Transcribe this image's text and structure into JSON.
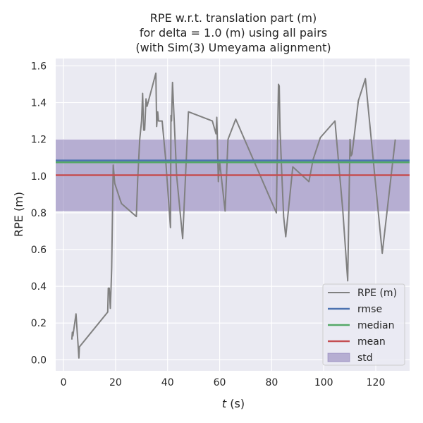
{
  "chart_data": {
    "type": "line",
    "title_lines": [
      "RPE w.r.t. translation part (m)",
      "for delta = 1.0 (m) using all pairs",
      "(with Sim(3) Umeyama alignment)"
    ],
    "xlabel_var": "t",
    "xlabel_unit": "(s)",
    "ylabel": "RPE (m)",
    "xlim": [
      -3,
      133
    ],
    "ylim": [
      -0.06,
      1.64
    ],
    "x_ticks": [
      0,
      20,
      40,
      60,
      80,
      100,
      120
    ],
    "y_ticks": [
      0.0,
      0.2,
      0.4,
      0.6,
      0.8,
      1.0,
      1.2,
      1.4,
      1.6
    ],
    "y_tick_labels": [
      "0.0",
      "0.2",
      "0.4",
      "0.6",
      "0.8",
      "1.0",
      "1.2",
      "1.4",
      "1.6"
    ],
    "grid": true,
    "legend_position": "lower-right",
    "series": [
      {
        "name": "RPE (m)",
        "color": "#808080",
        "x": [
          3.2,
          3.4,
          3.6,
          4.8,
          5.7,
          5.9,
          6.1,
          17.0,
          17.2,
          17.6,
          18.0,
          18.3,
          18.5,
          19.1,
          19.7,
          21.8,
          22.3,
          28.0,
          28.5,
          29.3,
          30.0,
          30.4,
          30.8,
          31.2,
          31.7,
          32.1,
          35.5,
          35.8,
          36.2,
          36.5,
          37.9,
          39.2,
          41.1,
          41.3,
          41.5,
          41.9,
          43.5,
          45.8,
          48.0,
          57.2,
          58.6,
          58.9,
          59.5,
          60.0,
          62.1,
          63.2,
          66.2,
          81.8,
          82.6,
          82.9,
          83.2,
          83.7,
          84.6,
          85.4,
          88.1,
          94.3,
          95.9,
          98.7,
          104.3,
          107.3,
          109.2,
          110.1,
          110.5,
          110.9,
          113.3,
          116.0,
          122.5,
          127.5
        ],
        "values": [
          0.11,
          0.15,
          0.13,
          0.25,
          0.06,
          0.01,
          0.07,
          0.26,
          0.39,
          0.39,
          0.28,
          0.4,
          0.5,
          1.06,
          0.96,
          0.87,
          0.85,
          0.78,
          0.98,
          1.2,
          1.3,
          1.45,
          1.25,
          1.25,
          1.42,
          1.38,
          1.56,
          1.27,
          1.35,
          1.3,
          1.3,
          1.1,
          0.72,
          1.33,
          1.3,
          1.51,
          1.0,
          0.66,
          1.35,
          1.3,
          1.23,
          1.32,
          0.97,
          1.08,
          0.81,
          1.2,
          1.31,
          0.8,
          1.5,
          1.49,
          1.25,
          1.08,
          0.78,
          0.67,
          1.05,
          0.97,
          1.09,
          1.21,
          1.3,
          0.82,
          0.43,
          1.2,
          1.11,
          1.12,
          1.41,
          1.53,
          0.58,
          1.2
        ]
      },
      {
        "name": "rmse",
        "color": "#4c72b0",
        "value": 1.085
      },
      {
        "name": "median",
        "color": "#55a868",
        "value": 1.075
      },
      {
        "name": "mean",
        "color": "#c44e52",
        "value": 1.005
      },
      {
        "name": "std",
        "color": "#8172b2",
        "range": [
          0.81,
          1.2
        ]
      }
    ]
  }
}
